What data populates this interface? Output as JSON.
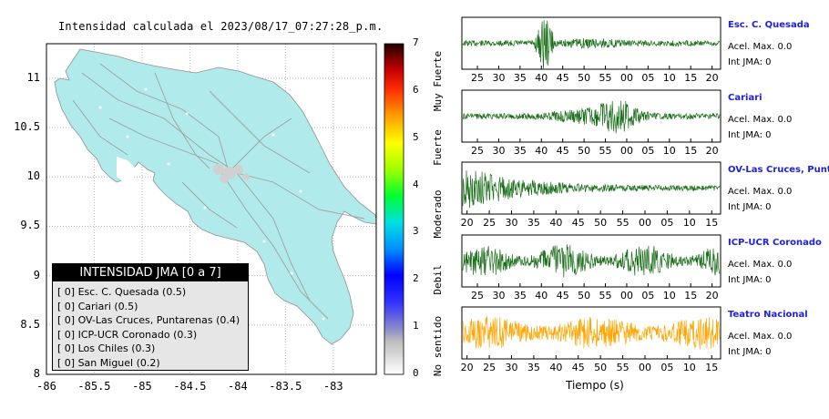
{
  "map": {
    "title": "Intensidad calculada el 2023/08/17_07:27:28_p.m.",
    "x_ticks": [
      "-86",
      "-85.5",
      "-85",
      "-84.5",
      "-84",
      "-83.5",
      "-83"
    ],
    "y_ticks": [
      "8",
      "8.5",
      "9",
      "9.5",
      "10",
      "10.5",
      "11"
    ],
    "colorbar": {
      "ticks": [
        "0",
        "1",
        "2",
        "3",
        "4",
        "5",
        "6",
        "7"
      ],
      "labels": [
        "No sentido",
        "Debil",
        "Moderado",
        "Fuerte",
        "Muy Fuerte"
      ]
    },
    "land_color": "#b0eaea"
  },
  "legend": {
    "title": "INTENSIDAD JMA [0 a 7]",
    "items": [
      "[ 0]  Esc. C. Quesada (0.5)",
      "[ 0]  Cariari (0.5)",
      "[ 0]  OV-Las Cruces, Puntarenas (0.4)",
      "[ 0]  ICP-UCR Coronado (0.3)",
      "[ 0]  Los Chiles (0.3)",
      "[ 0]  San Miguel (0.2)"
    ]
  },
  "stations": [
    {
      "name": "Esc. C. Quesada",
      "acel": "Acel. Max. 0.0",
      "jma": "Int JMA: 0",
      "color": "#1a6e1a",
      "ticks": [
        "25",
        "30",
        "35",
        "40",
        "45",
        "50",
        "55",
        "00",
        "05",
        "10",
        "15",
        "20"
      ]
    },
    {
      "name": "Cariari",
      "acel": "Acel. Max. 0.0",
      "jma": "Int JMA: 0",
      "color": "#1a6e1a",
      "ticks": [
        "25",
        "30",
        "35",
        "40",
        "45",
        "50",
        "55",
        "00",
        "05",
        "10",
        "15",
        "20"
      ]
    },
    {
      "name": "OV-Las Cruces, Puntar",
      "acel": "Acel. Max. 0.0",
      "jma": "Int JMA: 0",
      "color": "#1a6e1a",
      "ticks": [
        "20",
        "25",
        "30",
        "35",
        "40",
        "45",
        "50",
        "55",
        "00",
        "05",
        "10",
        "15"
      ]
    },
    {
      "name": "ICP-UCR Coronado",
      "acel": "Acel. Max. 0.0",
      "jma": "Int JMA: 0",
      "color": "#1a6e1a",
      "ticks": [
        "25",
        "30",
        "35",
        "40",
        "45",
        "50",
        "55",
        "00",
        "05",
        "10",
        "15",
        "20"
      ]
    },
    {
      "name": "Teatro Nacional",
      "acel": "Acel. Max. 0.0",
      "jma": "Int JMA: 0",
      "color": "#ffa500",
      "ticks": [
        "20",
        "25",
        "30",
        "35",
        "40",
        "45",
        "50",
        "55",
        "00",
        "05",
        "10",
        "15"
      ]
    }
  ],
  "xlabel": "Tiempo (s)"
}
